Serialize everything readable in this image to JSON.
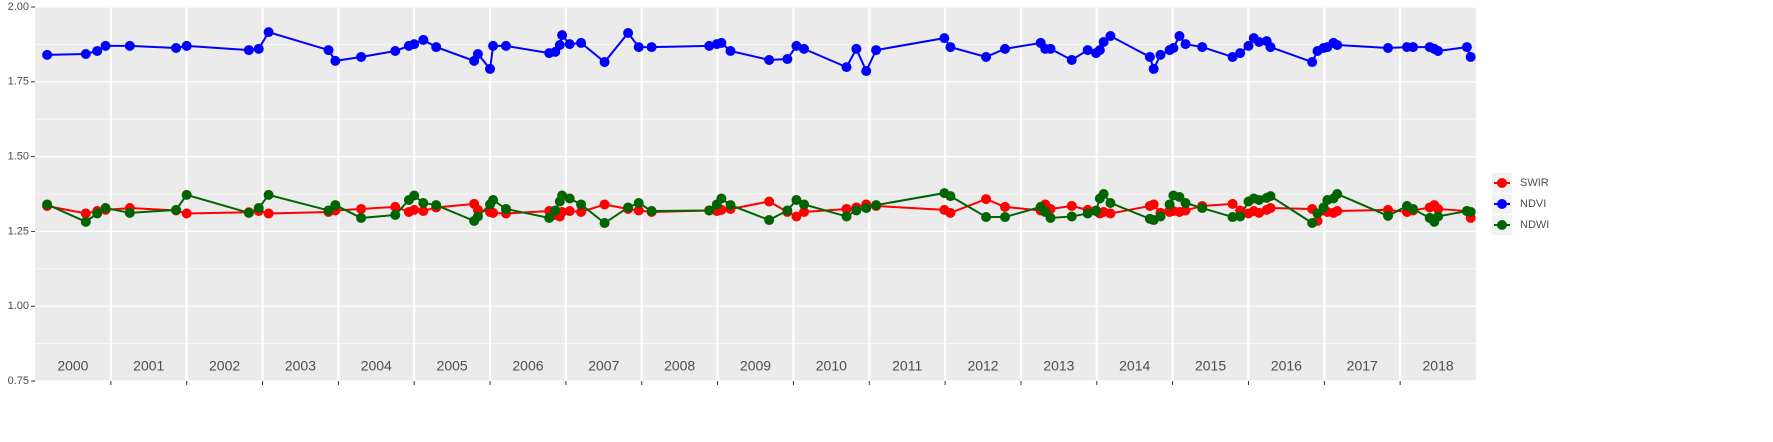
{
  "chart_data": {
    "type": "line",
    "x": [
      2000.16,
      2000.67,
      2000.82,
      2000.93,
      2001.25,
      2001.86,
      2002.0,
      2002.82,
      2002.95,
      2003.08,
      2003.87,
      2003.96,
      2004.3,
      2004.75,
      2004.93,
      2005.0,
      2005.12,
      2005.29,
      2005.79,
      2005.84,
      2006.0,
      2006.04,
      2006.21,
      2006.78,
      2006.86,
      2006.92,
      2006.95,
      2007.05,
      2007.2,
      2007.51,
      2007.82,
      2007.96,
      2008.13,
      2008.89,
      2008.99,
      2009.05,
      2009.17,
      2009.68,
      2009.92,
      2010.04,
      2010.14,
      2010.7,
      2010.83,
      2010.96,
      2011.09,
      2011.99,
      2012.07,
      2012.54,
      2012.79,
      2013.26,
      2013.32,
      2013.39,
      2013.67,
      2013.88,
      2013.99,
      2014.04,
      2014.09,
      2014.18,
      2014.7,
      2014.75,
      2014.84,
      2014.96,
      2015.01,
      2015.09,
      2015.17,
      2015.39,
      2015.79,
      2015.89,
      2016.0,
      2016.07,
      2016.14,
      2016.24,
      2016.29,
      2016.84,
      2016.91,
      2016.99,
      2017.04,
      2017.12,
      2017.17,
      2017.84,
      2018.09,
      2018.17,
      2018.39,
      2018.45,
      2018.5,
      2018.88,
      2018.93
    ],
    "series": [
      {
        "name": "SWIR",
        "color": "#ff0000",
        "values": [
          1.335,
          1.31,
          1.318,
          1.322,
          1.328,
          1.32,
          1.31,
          1.314,
          1.318,
          1.31,
          1.315,
          1.32,
          1.325,
          1.332,
          1.315,
          1.322,
          1.318,
          1.33,
          1.342,
          1.322,
          1.315,
          1.312,
          1.31,
          1.318,
          1.305,
          1.3,
          1.315,
          1.318,
          1.315,
          1.34,
          1.325,
          1.32,
          1.315,
          1.32,
          1.318,
          1.322,
          1.325,
          1.35,
          1.315,
          1.3,
          1.315,
          1.325,
          1.33,
          1.34,
          1.335,
          1.322,
          1.312,
          1.358,
          1.332,
          1.32,
          1.34,
          1.325,
          1.335,
          1.322,
          1.32,
          1.31,
          1.315,
          1.31,
          1.335,
          1.34,
          1.312,
          1.315,
          1.318,
          1.315,
          1.32,
          1.335,
          1.342,
          1.32,
          1.31,
          1.318,
          1.312,
          1.322,
          1.328,
          1.325,
          1.285,
          1.32,
          1.315,
          1.312,
          1.318,
          1.322,
          1.315,
          1.32,
          1.33,
          1.338,
          1.325,
          1.318,
          1.295
        ]
      },
      {
        "name": "NDVI",
        "color": "#0000ff",
        "values": [
          1.84,
          1.843,
          1.853,
          1.87,
          1.87,
          1.863,
          1.87,
          1.856,
          1.86,
          1.916,
          1.856,
          1.82,
          1.833,
          1.853,
          1.87,
          1.876,
          1.89,
          1.866,
          1.82,
          1.843,
          1.793,
          1.87,
          1.87,
          1.846,
          1.85,
          1.873,
          1.906,
          1.876,
          1.88,
          1.816,
          1.913,
          1.866,
          1.866,
          1.87,
          1.876,
          1.88,
          1.853,
          1.823,
          1.826,
          1.87,
          1.86,
          1.799,
          1.86,
          1.786,
          1.856,
          1.896,
          1.866,
          1.833,
          1.86,
          1.88,
          1.86,
          1.86,
          1.823,
          1.856,
          1.846,
          1.856,
          1.883,
          1.903,
          1.833,
          1.793,
          1.84,
          1.856,
          1.863,
          1.903,
          1.876,
          1.866,
          1.833,
          1.846,
          1.87,
          1.896,
          1.883,
          1.886,
          1.866,
          1.816,
          1.853,
          1.863,
          1.866,
          1.88,
          1.873,
          1.863,
          1.866,
          1.866,
          1.866,
          1.86,
          1.853,
          1.866,
          1.833
        ]
      },
      {
        "name": "NDWI",
        "color": "#006400",
        "values": [
          1.34,
          1.282,
          1.31,
          1.328,
          1.312,
          1.322,
          1.372,
          1.312,
          1.328,
          1.372,
          1.32,
          1.338,
          1.295,
          1.305,
          1.355,
          1.37,
          1.345,
          1.338,
          1.285,
          1.3,
          1.34,
          1.355,
          1.325,
          1.295,
          1.32,
          1.35,
          1.37,
          1.36,
          1.34,
          1.278,
          1.33,
          1.345,
          1.318,
          1.32,
          1.34,
          1.36,
          1.338,
          1.288,
          1.32,
          1.355,
          1.34,
          1.3,
          1.32,
          1.328,
          1.338,
          1.378,
          1.368,
          1.298,
          1.298,
          1.332,
          1.315,
          1.295,
          1.3,
          1.31,
          1.318,
          1.36,
          1.375,
          1.345,
          1.292,
          1.288,
          1.3,
          1.34,
          1.37,
          1.365,
          1.345,
          1.328,
          1.298,
          1.3,
          1.35,
          1.36,
          1.355,
          1.362,
          1.368,
          1.278,
          1.31,
          1.33,
          1.355,
          1.36,
          1.375,
          1.302,
          1.335,
          1.325,
          1.295,
          1.282,
          1.3,
          1.318,
          1.315
        ]
      }
    ],
    "xlim": [
      2000,
      2019
    ],
    "xbreaks": [
      2001,
      2002,
      2003,
      2004,
      2005,
      2006,
      2007,
      2008,
      2009,
      2010,
      2011,
      2012,
      2013,
      2014,
      2015,
      2016,
      2017,
      2018
    ],
    "xticks": [
      {
        "value": 2000.5,
        "label": "2000"
      },
      {
        "value": 2001.5,
        "label": "2001"
      },
      {
        "value": 2002.5,
        "label": "2002"
      },
      {
        "value": 2003.5,
        "label": "2003"
      },
      {
        "value": 2004.5,
        "label": "2004"
      },
      {
        "value": 2005.5,
        "label": "2005"
      },
      {
        "value": 2006.5,
        "label": "2006"
      },
      {
        "value": 2007.5,
        "label": "2007"
      },
      {
        "value": 2008.5,
        "label": "2008"
      },
      {
        "value": 2009.5,
        "label": "2009"
      },
      {
        "value": 2010.5,
        "label": "2010"
      },
      {
        "value": 2011.5,
        "label": "2011"
      },
      {
        "value": 2012.5,
        "label": "2012"
      },
      {
        "value": 2013.5,
        "label": "2013"
      },
      {
        "value": 2014.5,
        "label": "2014"
      },
      {
        "value": 2015.5,
        "label": "2015"
      },
      {
        "value": 2016.5,
        "label": "2016"
      },
      {
        "value": 2017.5,
        "label": "2017"
      },
      {
        "value": 2018.5,
        "label": "2018"
      }
    ],
    "ylim": [
      0.75,
      2.0
    ],
    "yticks": [
      {
        "value": 0.75,
        "label": "0.75"
      },
      {
        "value": 1.0,
        "label": "1.00"
      },
      {
        "value": 1.25,
        "label": "1.25"
      },
      {
        "value": 1.5,
        "label": "1.50"
      },
      {
        "value": 1.75,
        "label": "1.75"
      },
      {
        "value": 2.0,
        "label": "2.00"
      }
    ],
    "grid": true,
    "legend": "right"
  }
}
